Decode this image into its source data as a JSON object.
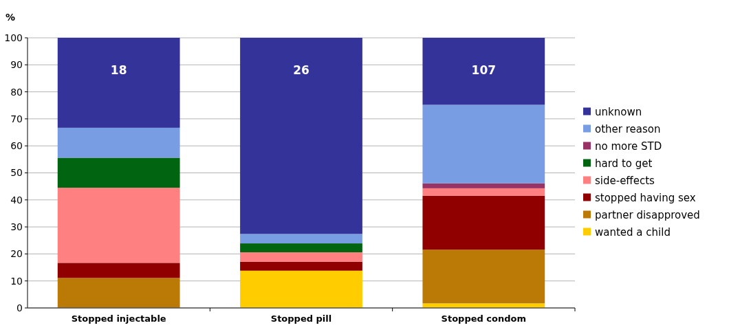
{
  "chart_data": {
    "type": "bar",
    "stacked": true,
    "ylabel": "%",
    "categories": [
      "Stopped injectable",
      "Stopped pill",
      "Stopped condom"
    ],
    "series": [
      {
        "name": "wanted a child",
        "color": "#ffcc00",
        "values": [
          0,
          13.8,
          1.7
        ]
      },
      {
        "name": "partner disapproved",
        "color": "#bb7906",
        "values": [
          11.1,
          0,
          19.9
        ]
      },
      {
        "name": "stopped having sex",
        "color": "#900000",
        "values": [
          5.6,
          3.3,
          19.9
        ]
      },
      {
        "name": "side-effects",
        "color": "#ff8080",
        "values": [
          27.8,
          3.5,
          2.8
        ]
      },
      {
        "name": "hard to get",
        "color": "#006411",
        "values": [
          11.1,
          3.3,
          0
        ]
      },
      {
        "name": "no more STD",
        "color": "#993366",
        "values": [
          0,
          0,
          1.8
        ]
      },
      {
        "name": "other reason",
        "color": "#789de2",
        "values": [
          11.1,
          3.5,
          29.1
        ]
      },
      {
        "name": "unknown",
        "color": "#333399",
        "values": [
          33.3,
          72.6,
          24.8
        ]
      }
    ],
    "annotations": [
      "18",
      "26",
      "107"
    ],
    "ylim": [
      0,
      100
    ],
    "yticks": [
      0,
      10,
      20,
      30,
      40,
      50,
      60,
      70,
      80,
      90,
      100
    ],
    "grid": "y",
    "legend": "right"
  }
}
